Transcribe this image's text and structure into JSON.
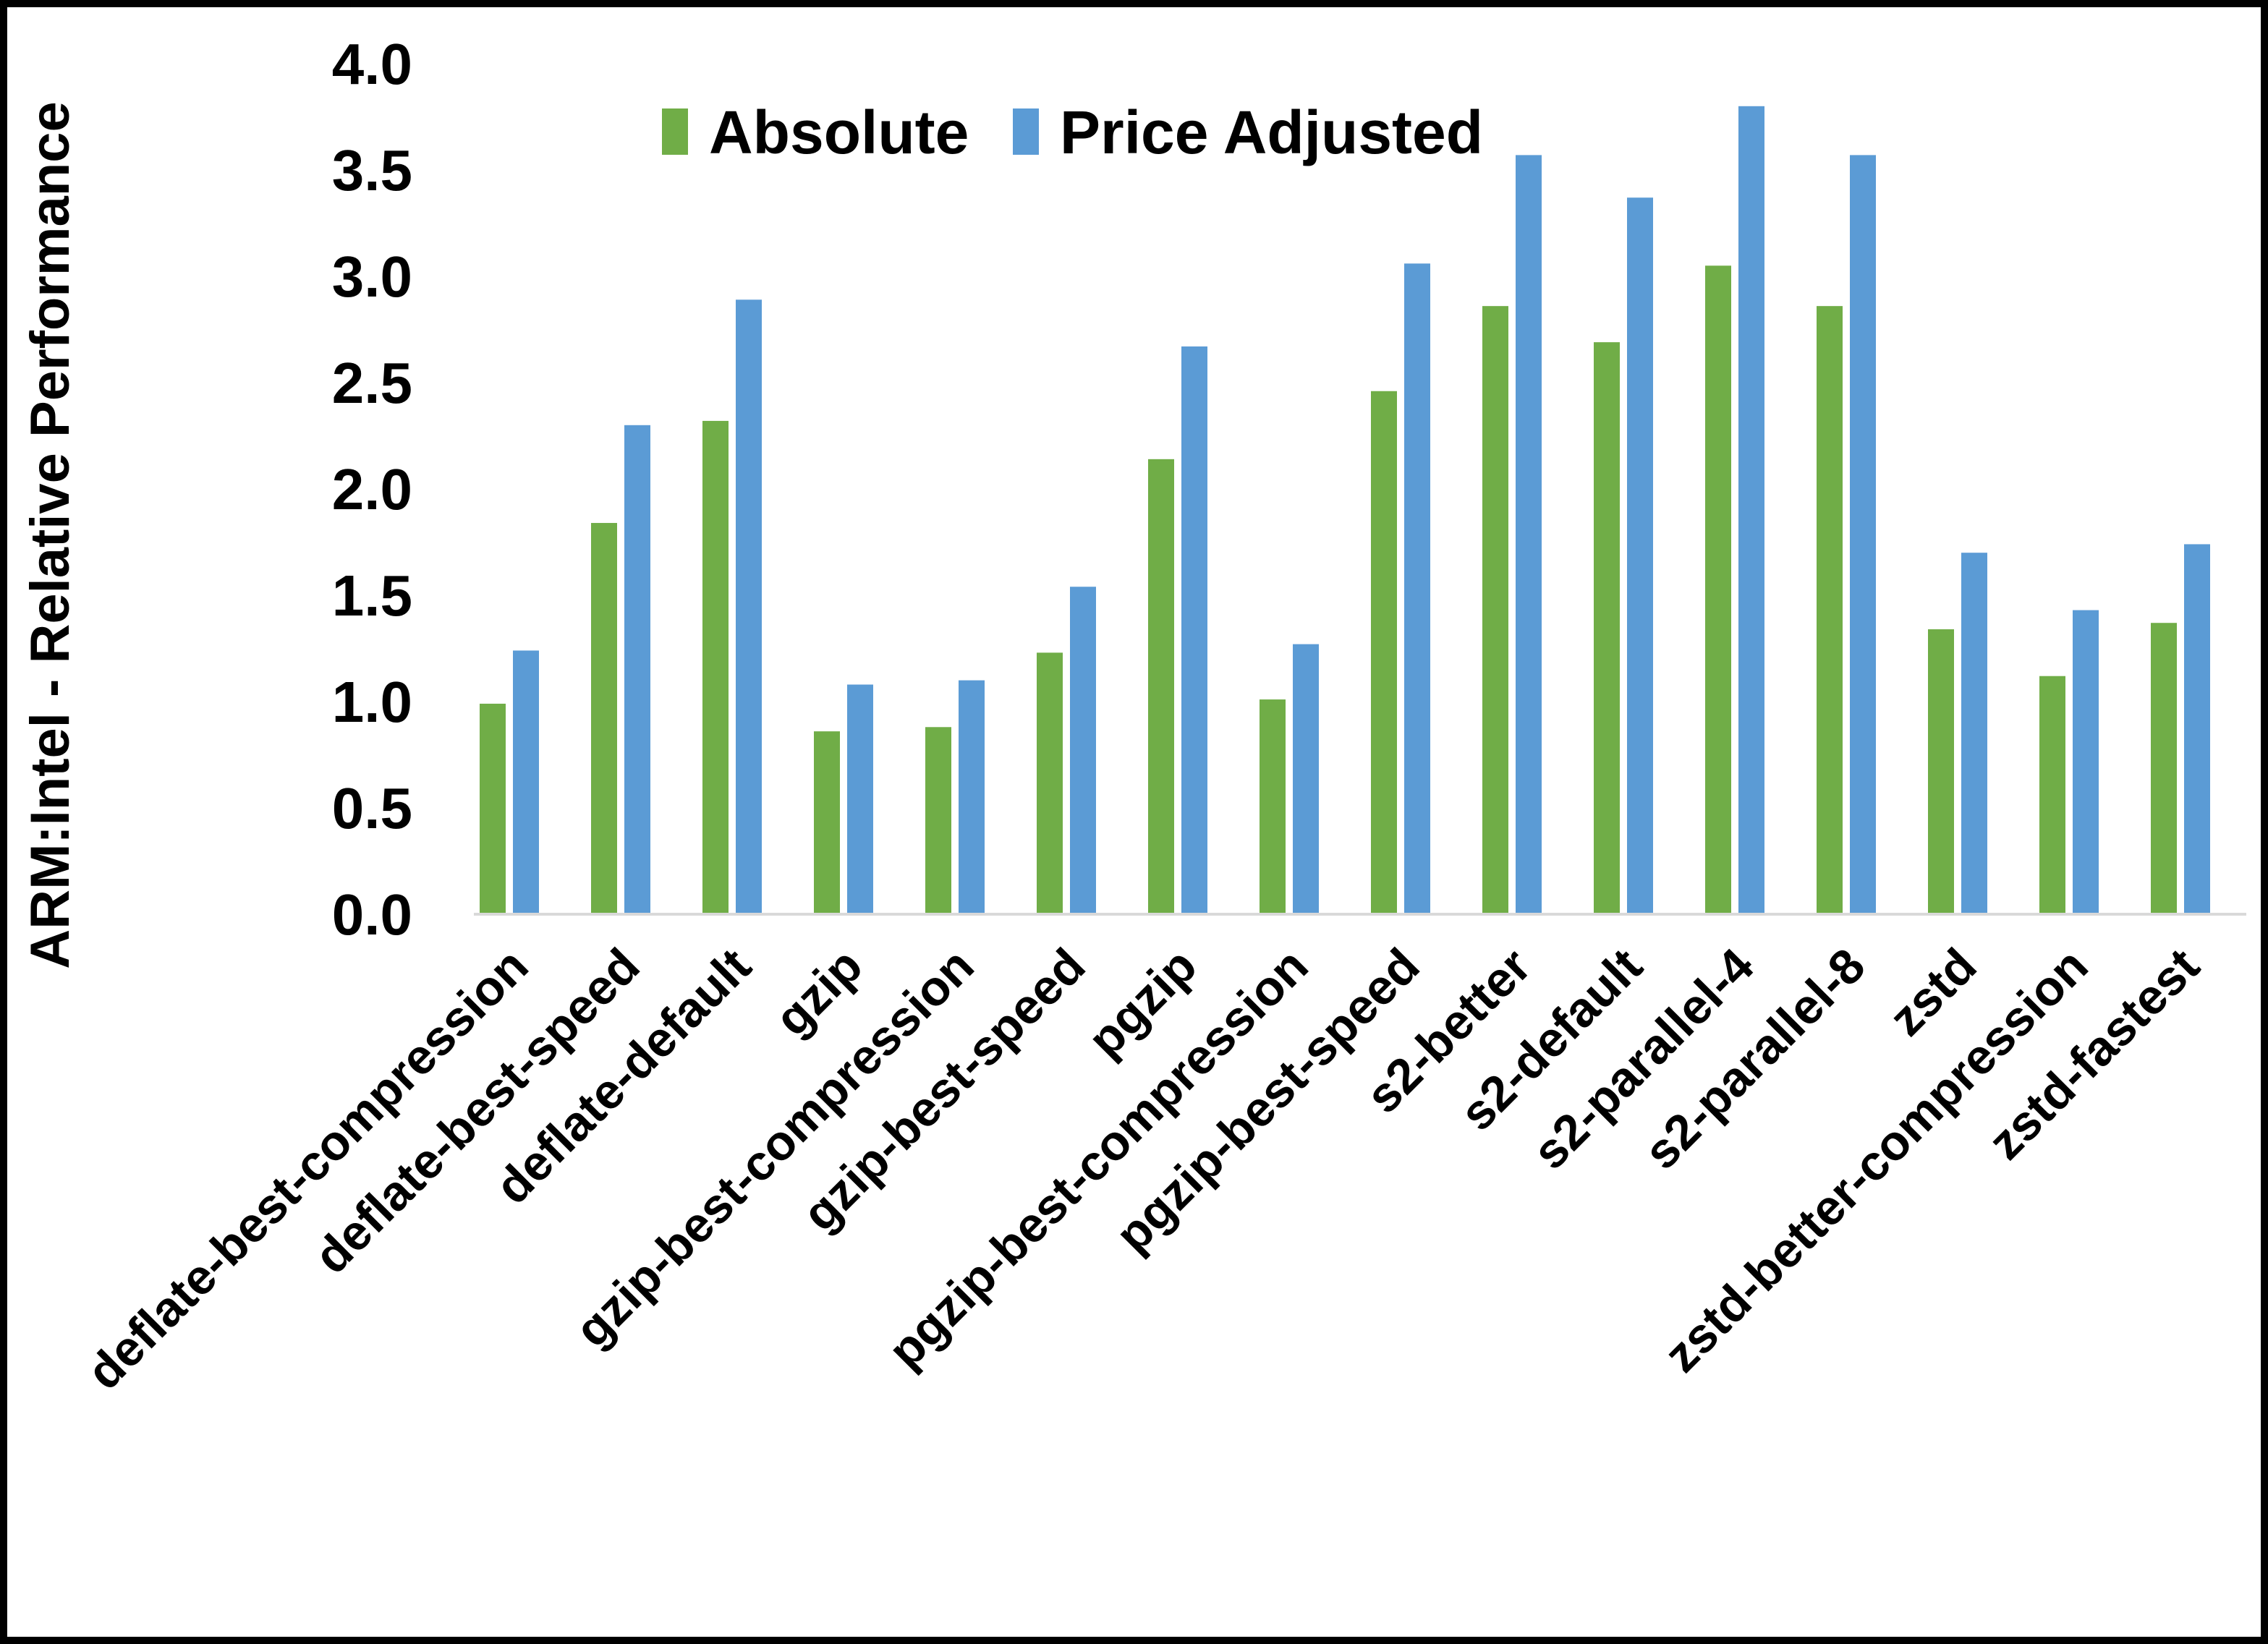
{
  "frame": {
    "background": "#FFFFFF",
    "border_color": "#000000"
  },
  "chart_data": {
    "type": "bar",
    "title": "",
    "xlabel": "",
    "ylabel": "ARM:Intel - Relative Performance",
    "ylim": [
      0.0,
      4.0
    ],
    "ytick_step": 0.5,
    "ytick_labels": [
      "0.0",
      "0.5",
      "1.0",
      "1.5",
      "2.0",
      "2.5",
      "3.0",
      "3.5",
      "4.0"
    ],
    "grid": false,
    "legend_position": "top-center-inside",
    "axis_line_color": "#D9D9D9",
    "text_color": "#000000",
    "categories": [
      "deflate-best-compression",
      "deflate-best-speed",
      "deflate-default",
      "gzip",
      "gzip-best-compression",
      "gzip-best-speed",
      "pgzip",
      "pgzip-best-compression",
      "pgzip-best-speed",
      "s2-better",
      "s2-default",
      "s2-parallel-4",
      "s2-parallel-8",
      "zstd",
      "zstd-better-compression",
      "zstd-fastest"
    ],
    "series": [
      {
        "name": "Absolute",
        "color": "#70AD47",
        "values": [
          0.99,
          1.84,
          2.32,
          0.86,
          0.88,
          1.23,
          2.14,
          1.01,
          2.46,
          2.86,
          2.69,
          3.05,
          2.86,
          1.34,
          1.12,
          1.37
        ]
      },
      {
        "name": "Price Adjusted",
        "color": "#5B9BD5",
        "values": [
          1.24,
          2.3,
          2.89,
          1.08,
          1.1,
          1.54,
          2.67,
          1.27,
          3.06,
          3.57,
          3.37,
          3.8,
          3.57,
          1.7,
          1.43,
          1.74
        ]
      }
    ]
  }
}
